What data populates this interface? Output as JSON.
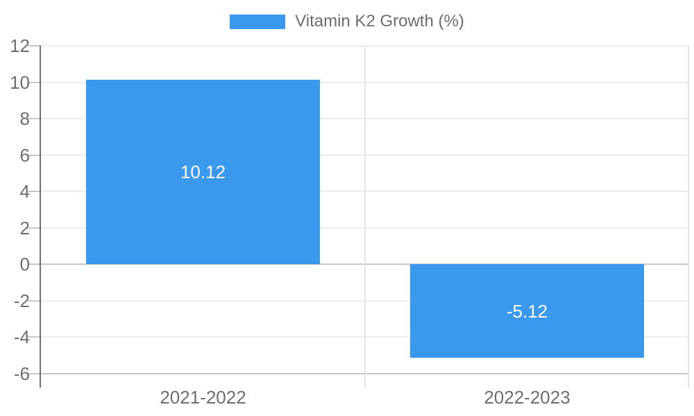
{
  "legend": {
    "label": "Vitamin K2 Growth (%)"
  },
  "chart_data": {
    "type": "bar",
    "categories": [
      "2021-2022",
      "2022-2023"
    ],
    "series": [
      {
        "name": "Vitamin K2 Growth (%)",
        "values": [
          10.12,
          -5.12
        ]
      }
    ],
    "value_labels": [
      "10.12",
      "-5.12"
    ],
    "ylim": [
      -6,
      12
    ],
    "ytick_step": 2,
    "yticks": [
      12,
      10,
      8,
      6,
      4,
      2,
      0,
      -2,
      -4,
      -6
    ],
    "ytick_labels": [
      "12",
      "10",
      "8",
      "6",
      "4",
      "2",
      "0",
      "-2",
      "-4",
      "-6"
    ],
    "grid": true,
    "legend_position": "top-center",
    "bar_labels_inside": true
  },
  "colors": {
    "bar": "#3a99ec",
    "bar_label_text": "#ffffff",
    "axis_line": "#6e6e6e",
    "grid_line": "#ececec",
    "grid_line_major": "#c6c6c6",
    "tick_mark": "#c6c6c6",
    "category_separator": "#e4e4e4",
    "plot_right_border": "#e4e4e4",
    "axis_label_text": "#6e6e6e",
    "legend_text": "#6d6d6d"
  }
}
